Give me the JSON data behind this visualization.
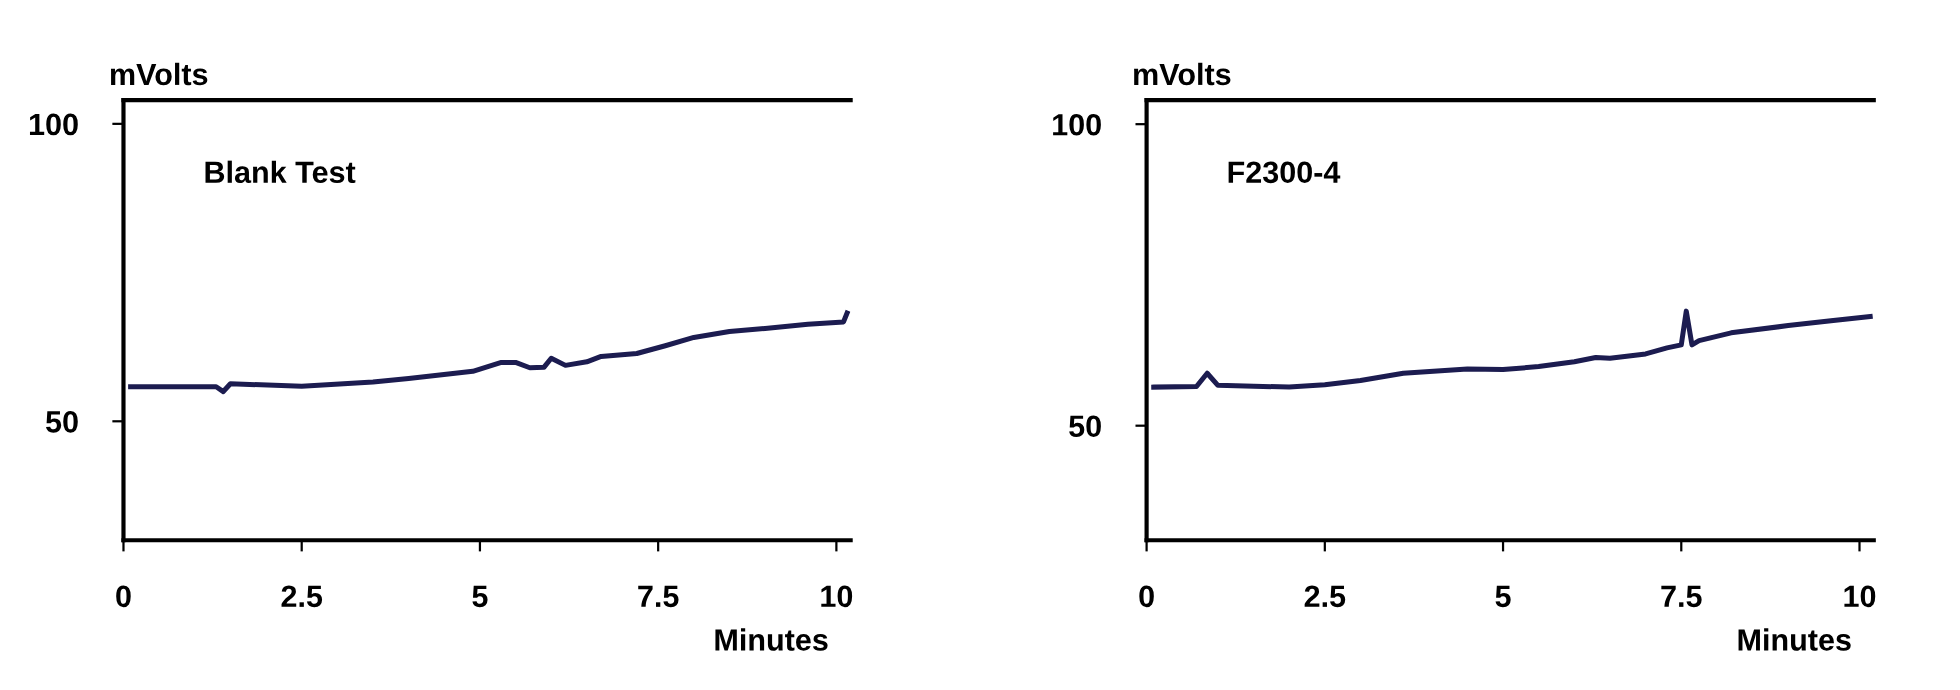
{
  "chart_data": [
    {
      "type": "line",
      "ylabel": "mVolts",
      "xlabel": "Minutes",
      "annotations": [
        "Blank Test"
      ],
      "xlim": [
        0,
        10.2
      ],
      "ylim": [
        30,
        104
      ],
      "xticks": [
        0,
        2.5,
        5,
        7.5,
        10
      ],
      "yticks": [
        50,
        100
      ],
      "grid": false,
      "legend": false,
      "series": [
        {
          "color": "#1c1c50",
          "x": [
            0.1,
            1.3,
            1.4,
            1.5,
            2.5,
            3.5,
            4.0,
            4.9,
            5.3,
            5.5,
            5.7,
            5.9,
            6.0,
            6.2,
            6.5,
            6.7,
            7.2,
            7.6,
            8.0,
            8.5,
            9.0,
            9.6,
            10.1,
            10.15
          ],
          "values": [
            55.8,
            55.8,
            55.0,
            56.3,
            55.9,
            56.6,
            57.2,
            58.4,
            59.9,
            59.9,
            59.0,
            59.1,
            60.6,
            59.4,
            60.0,
            60.9,
            61.4,
            62.7,
            64.1,
            65.1,
            65.6,
            66.3,
            66.7,
            68.2
          ]
        }
      ]
    },
    {
      "type": "line",
      "ylabel": "mVolts",
      "xlabel": "Minutes",
      "annotations": [
        "F2300-4"
      ],
      "xlim": [
        0,
        10.2
      ],
      "ylim": [
        31,
        104
      ],
      "xticks": [
        0,
        2.5,
        5,
        7.5,
        10
      ],
      "yticks": [
        50,
        100
      ],
      "grid": false,
      "legend": false,
      "series": [
        {
          "color": "#1c1c50",
          "x": [
            0.1,
            0.7,
            0.85,
            1.0,
            2.0,
            2.5,
            3.0,
            3.6,
            4.5,
            5.0,
            5.5,
            6.0,
            6.3,
            6.5,
            7.0,
            7.3,
            7.5,
            7.57,
            7.65,
            7.75,
            8.2,
            9.0,
            9.6,
            10.15
          ],
          "values": [
            56.4,
            56.5,
            58.7,
            56.7,
            56.4,
            56.8,
            57.5,
            58.7,
            59.4,
            59.3,
            59.8,
            60.6,
            61.3,
            61.2,
            61.9,
            62.9,
            63.4,
            69.0,
            63.4,
            64.1,
            65.4,
            66.6,
            67.4,
            68.1
          ]
        }
      ]
    }
  ]
}
